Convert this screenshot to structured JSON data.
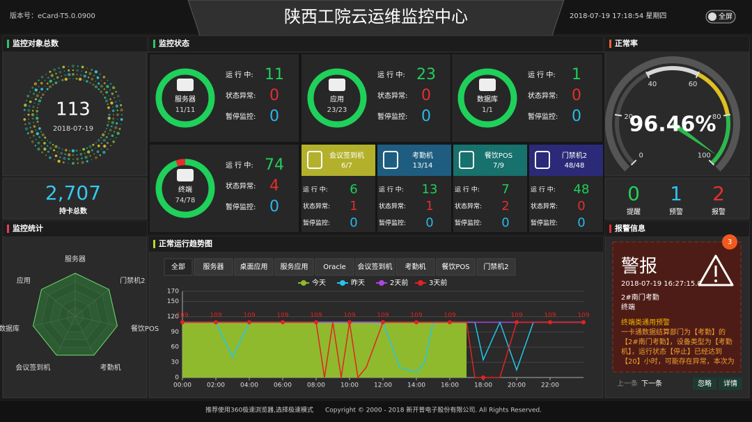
{
  "header": {
    "version": "版本号：eCard-T5.0.0900",
    "title": "陕西工院云运维监控中心",
    "datetime": "2018-07-19 17:18:54 星期四",
    "fullscreen": "全屏"
  },
  "objects": {
    "title": "监控对象总数",
    "total": 113,
    "date": "2018-07-19",
    "card_total": "2,707",
    "card_label": "持卡总数"
  },
  "status": {
    "title": "监控状态",
    "labels": {
      "running": "运 行 中:",
      "abnormal": "状态异常:",
      "paused": "暂停监控:"
    },
    "items": [
      {
        "name": "服务器",
        "ratio": "11/11",
        "running": 11,
        "abnormal": 0,
        "paused": 0
      },
      {
        "name": "应用",
        "ratio": "23/23",
        "running": 23,
        "abnormal": 0,
        "paused": 0
      },
      {
        "name": "数据库",
        "ratio": "1/1",
        "running": 1,
        "abnormal": 0,
        "paused": 0
      },
      {
        "name": "终端",
        "ratio": "74/78",
        "running": 74,
        "abnormal": 4,
        "paused": 0
      }
    ],
    "terminals": [
      {
        "name": "会议签到机",
        "ratio": "6/7",
        "running": 6,
        "abnormal": 1,
        "paused": 0,
        "color": "#b3b12b"
      },
      {
        "name": "考勤机",
        "ratio": "13/14",
        "running": 13,
        "abnormal": 1,
        "paused": 0,
        "color": "#1f5d80"
      },
      {
        "name": "餐饮POS",
        "ratio": "7/9",
        "running": 7,
        "abnormal": 2,
        "paused": 0,
        "color": "#17716d"
      },
      {
        "name": "门禁机2",
        "ratio": "48/48",
        "running": 48,
        "abnormal": 0,
        "paused": 0,
        "color": "#2b2a78"
      }
    ]
  },
  "normal_rate": {
    "title": "正常率",
    "gauge": {
      "type": "gauge",
      "value": 96.46,
      "value_label": "96.46%",
      "lim": [
        0,
        100
      ],
      "ticks": [
        0,
        20,
        40,
        60,
        80,
        100
      ]
    },
    "counts": [
      {
        "label": "提醒",
        "value": 0,
        "color": "#22d05a"
      },
      {
        "label": "预警",
        "value": 1,
        "color": "#2ec4ee"
      },
      {
        "label": "报警",
        "value": 2,
        "color": "#e53030"
      }
    ]
  },
  "statistics": {
    "title": "监控统计",
    "radar": {
      "type": "radar",
      "categories": [
        "服务器",
        "门禁机2",
        "餐饮POS",
        "考勤机",
        "会议签到机",
        "数据库",
        "应用"
      ],
      "values": [
        100,
        100,
        100,
        100,
        100,
        100,
        100
      ],
      "rlim": [
        0,
        100
      ],
      "color": "#2f6a36"
    }
  },
  "trend": {
    "title": "正常运行趋势图",
    "tabs": [
      "全部",
      "服务器",
      "桌面应用",
      "服务应用",
      "Oracle",
      "会议签到机",
      "考勤机",
      "餐饮POS",
      "门禁机2"
    ],
    "chart": {
      "type": "line",
      "x": [
        0,
        1,
        2,
        3,
        4,
        5,
        6,
        7,
        8,
        8.5,
        9,
        9.5,
        10,
        10.5,
        11,
        12,
        13,
        14,
        14.5,
        15,
        16,
        17,
        17.5,
        18,
        19,
        20,
        21,
        22,
        23,
        24
      ],
      "xlim": [
        0,
        24
      ],
      "xticks": [
        {
          "value": 0,
          "label": "00:00"
        },
        {
          "value": 2,
          "label": "02:00"
        },
        {
          "value": 4,
          "label": "04:00"
        },
        {
          "value": 6,
          "label": "06:00"
        },
        {
          "value": 8,
          "label": "08:00"
        },
        {
          "value": 10,
          "label": "10:00"
        },
        {
          "value": 12,
          "label": "12:00"
        },
        {
          "value": 14,
          "label": "14:00"
        },
        {
          "value": 16,
          "label": "16:00"
        },
        {
          "value": 18,
          "label": "18:00"
        },
        {
          "value": 20,
          "label": "20:00"
        },
        {
          "value": 22,
          "label": "22:00"
        }
      ],
      "ylim": [
        0,
        170
      ],
      "yticks": [
        0,
        30,
        60,
        90,
        120,
        150,
        170
      ],
      "grid": true,
      "legend": "top",
      "series": [
        {
          "name": "今天",
          "color": "#8fba2e",
          "area": true,
          "values": [
            109,
            109,
            109,
            109,
            109,
            109,
            109,
            109,
            109,
            109,
            109,
            109,
            109,
            109,
            109,
            109,
            109,
            109,
            109,
            109,
            109,
            109,
            null,
            null,
            null,
            null,
            null,
            null,
            null,
            null
          ]
        },
        {
          "name": "昨天",
          "color": "#22c6ea",
          "values": [
            109,
            109,
            109,
            40,
            109,
            109,
            109,
            109,
            109,
            109,
            109,
            109,
            109,
            109,
            109,
            109,
            20,
            10,
            30,
            109,
            109,
            109,
            109,
            35,
            109,
            15,
            109,
            109,
            109,
            109
          ]
        },
        {
          "name": "2天前",
          "color": "#b044e0",
          "values": [
            109,
            109,
            109,
            109,
            109,
            109,
            109,
            109,
            109,
            109,
            109,
            109,
            109,
            109,
            109,
            109,
            109,
            109,
            109,
            109,
            109,
            109,
            109,
            109,
            109,
            109,
            109,
            109,
            109,
            109
          ]
        },
        {
          "name": "3天前",
          "color": "#e32222",
          "values": [
            109,
            109,
            109,
            109,
            109,
            109,
            109,
            109,
            109,
            0,
            109,
            0,
            109,
            0,
            20,
            109,
            109,
            109,
            109,
            109,
            109,
            109,
            0,
            0,
            0,
            109,
            109,
            109,
            109,
            109
          ]
        }
      ]
    }
  },
  "alert": {
    "title": "报警信息",
    "count": "3",
    "heading": "警报",
    "time": "2018-07-19 16:27:15.0",
    "location": "2#南门考勤",
    "kind": "终端",
    "name": "终端类通用预警",
    "text": "一卡通数据结算部门为【考勤】的【2#南门考勤】，设备类型为【考勤机】，运行状态【停止】已经达到【20】小时，可能存在异常，本次为【预警】信",
    "prev": "上一条",
    "next": "下一条",
    "ignore": "忽略",
    "detail": "详情"
  },
  "footer": {
    "tip": "推荐使用360极速浏览器,选择极速模式",
    "copyright": "Copyright © 2000 - 2018 新开普电子股份有限公司. All Rights Reserved."
  }
}
